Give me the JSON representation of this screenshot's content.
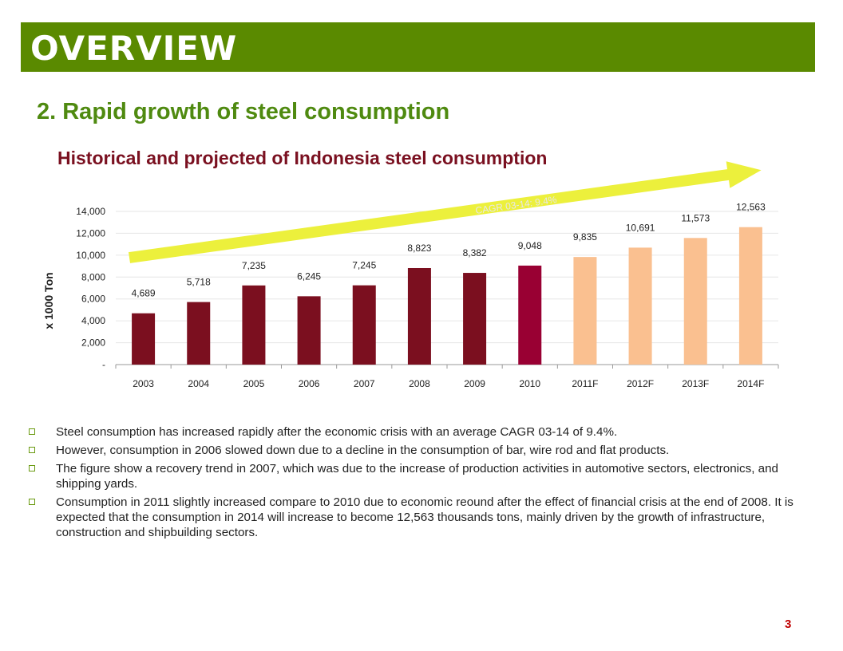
{
  "header": {
    "title": "OVERVIEW"
  },
  "section_title": "2. Rapid growth of steel consumption",
  "chart_data": {
    "type": "bar",
    "title": "Historical and projected of Indonesia steel consumption",
    "xlabel": "",
    "ylabel": "x 1000 Ton",
    "ylim": [
      0,
      14000
    ],
    "yticks": [
      0,
      2000,
      4000,
      6000,
      8000,
      10000,
      12000,
      14000
    ],
    "ytick_labels": [
      "-",
      "2,000",
      "4,000",
      "6,000",
      "8,000",
      "10,000",
      "12,000",
      "14,000"
    ],
    "categories": [
      "2003",
      "2004",
      "2005",
      "2006",
      "2007",
      "2008",
      "2009",
      "2010",
      "2011F",
      "2012F",
      "2013F",
      "2014F"
    ],
    "values": [
      4689,
      5718,
      7235,
      6245,
      7245,
      8823,
      8382,
      9048,
      9835,
      10691,
      11573,
      12563
    ],
    "value_labels": [
      "4,689",
      "5,718",
      "7,235",
      "6,245",
      "7,245",
      "8,823",
      "8,382",
      "9,048",
      "9,835",
      "10,691",
      "11,573",
      "12,563"
    ],
    "bar_groups": [
      "historical",
      "historical",
      "historical",
      "historical",
      "historical",
      "historical",
      "historical",
      "current",
      "forecast",
      "forecast",
      "forecast",
      "forecast"
    ],
    "colors": {
      "historical": "#7b0f1f",
      "current": "#990033",
      "forecast": "#fac090",
      "trend_arrow": "#ecf03c",
      "grid": "#e6e6e6"
    },
    "annotation": "CAGR 03-14: 9.4%",
    "grid": true,
    "legend": "none"
  },
  "bullets": [
    "Steel consumption has increased rapidly after the economic crisis with an average CAGR 03-14 of 9.4%.",
    "However, consumption in 2006 slowed down due to a decline in the consumption of bar, wire rod and flat products.",
    "The figure show a recovery trend in 2007, which was due to the increase of production activities in automotive sectors, electronics, and shipping yards.",
    "Consumption in 2011 slightly increased compare to 2010 due to economic reound after the effect of financial crisis at the end of 2008. It is expected that the consumption in 2014 will increase to become 12,563 thousands tons, mainly driven by the growth of infrastructure, construction and shipbuilding sectors."
  ],
  "page_number": "3",
  "colors": {
    "banner": "#5a8a00",
    "subtitle": "#4f8a10",
    "chart_title": "#7a1020",
    "bullet_marker": "#6a9a10",
    "page_number": "#c00000"
  },
  "icons": {
    "bullet": "hollow-square-bullet-icon",
    "trend": "trend-arrow-icon"
  }
}
